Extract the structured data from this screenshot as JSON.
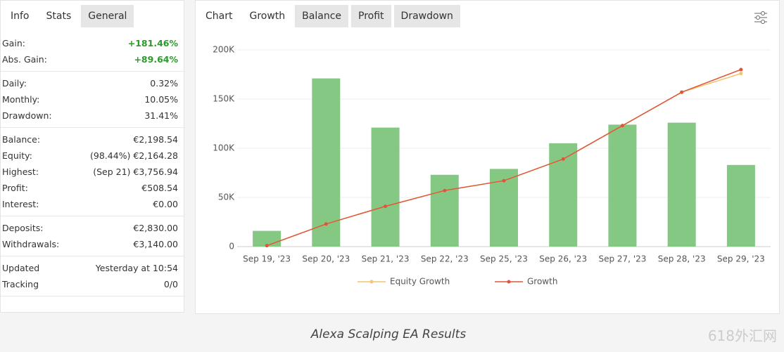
{
  "left_panel": {
    "tabs": [
      "Info",
      "Stats",
      "General"
    ],
    "groups": [
      [
        {
          "label": "Gain:",
          "value": "+181.46%"
        },
        {
          "label": "Abs. Gain:",
          "value": "+89.64%"
        }
      ],
      [
        {
          "label": "Daily:",
          "value": "0.32%"
        },
        {
          "label": "Monthly:",
          "value": "10.05%"
        },
        {
          "label": "Drawdown:",
          "value": "31.41%"
        }
      ],
      [
        {
          "label": "Balance:",
          "value": "€2,198.54"
        },
        {
          "label": "Equity:",
          "value": "(98.44%) €2,164.28"
        },
        {
          "label": "Highest:",
          "value": "(Sep 21) €3,756.94"
        },
        {
          "label": "Profit:",
          "value": "€508.54"
        },
        {
          "label": "Interest:",
          "value": "€0.00"
        }
      ],
      [
        {
          "label": "Deposits:",
          "value": "€2,830.00"
        },
        {
          "label": "Withdrawals:",
          "value": "€3,140.00"
        }
      ],
      [
        {
          "label": "Updated",
          "value": "Yesterday at 10:54"
        },
        {
          "label": "Tracking",
          "value": "0/0"
        }
      ]
    ]
  },
  "chart_tabs": [
    "Chart",
    "Growth",
    "Balance",
    "Profit",
    "Drawdown"
  ],
  "chart_data": {
    "type": "bar",
    "categories": [
      "Sep 19, '23",
      "Sep 20, '23",
      "Sep 21, '23",
      "Sep 22, '23",
      "Sep 25, '23",
      "Sep 26, '23",
      "Sep 27, '23",
      "Sep 28, '23",
      "Sep 29, '23"
    ],
    "values": [
      16,
      171,
      121,
      73,
      79,
      105,
      124,
      126,
      83
    ],
    "color": "#84c884",
    "series": [
      {
        "name": "Equity Growth",
        "color": "#f3c46e",
        "values": [
          1,
          23,
          41,
          57,
          67,
          89,
          123,
          157,
          176
        ]
      },
      {
        "name": "Growth",
        "color": "#e0553a",
        "values": [
          1,
          23,
          41,
          57,
          67,
          89,
          123,
          157,
          180
        ]
      }
    ],
    "ylim": [
      0,
      200
    ],
    "yticks": [
      {
        "value": 0,
        "label": "0"
      },
      {
        "value": 50,
        "label": "50K"
      },
      {
        "value": 100,
        "label": "100K"
      },
      {
        "value": 150,
        "label": "150K"
      },
      {
        "value": 200,
        "label": "200K"
      }
    ],
    "grid": true
  },
  "caption": "Alexa Scalping EA Results",
  "watermark": "618外汇网"
}
